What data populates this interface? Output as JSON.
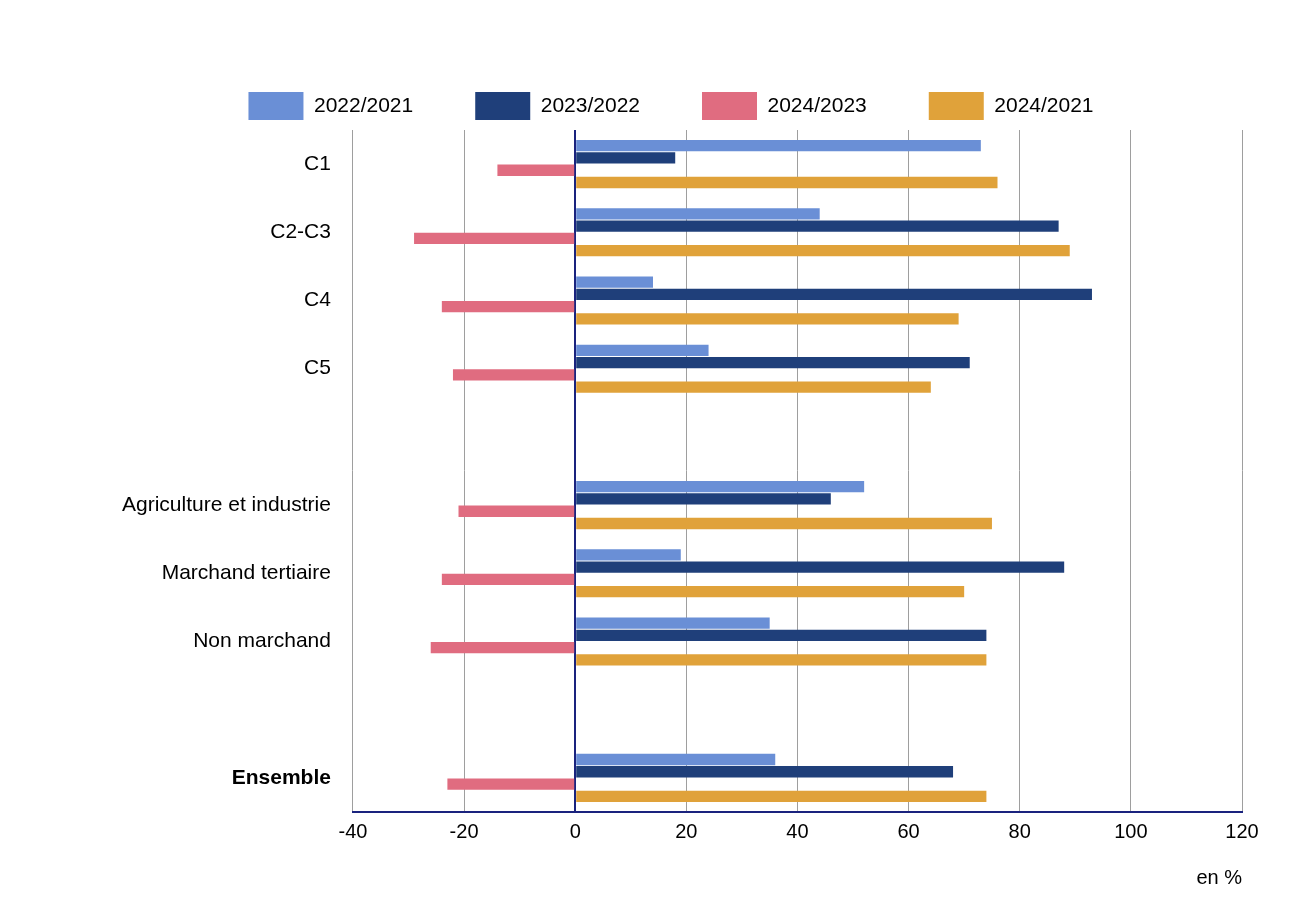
{
  "chart_data": {
    "type": "bar",
    "orientation": "horizontal",
    "categories": [
      "C1",
      "C2-C3",
      "C4",
      "C5",
      null,
      "Agriculture et industrie",
      "Marchand tertiaire",
      "Non marchand",
      null,
      "Ensemble"
    ],
    "series": [
      {
        "name": "2022/2021",
        "color": "#6a8fd6",
        "values": [
          73,
          44,
          14,
          24,
          null,
          52,
          19,
          35,
          null,
          36
        ]
      },
      {
        "name": "2023/2022",
        "color": "#1f3f7a",
        "values": [
          18,
          87,
          93,
          71,
          null,
          46,
          88,
          74,
          null,
          68
        ]
      },
      {
        "name": "2024/2023",
        "color": "#e06c80",
        "values": [
          -14,
          -29,
          -24,
          -22,
          null,
          -21,
          -24,
          -26,
          null,
          -23
        ]
      },
      {
        "name": "2024/2021",
        "color": "#e0a23a",
        "values": [
          76,
          89,
          69,
          64,
          null,
          75,
          70,
          74,
          null,
          74
        ]
      }
    ],
    "x_label": "en %",
    "xlim": [
      -40,
      120
    ],
    "xticks": [
      -40,
      -20,
      0,
      20,
      40,
      60,
      80,
      100,
      120
    ],
    "grid": true,
    "legend": "top"
  }
}
